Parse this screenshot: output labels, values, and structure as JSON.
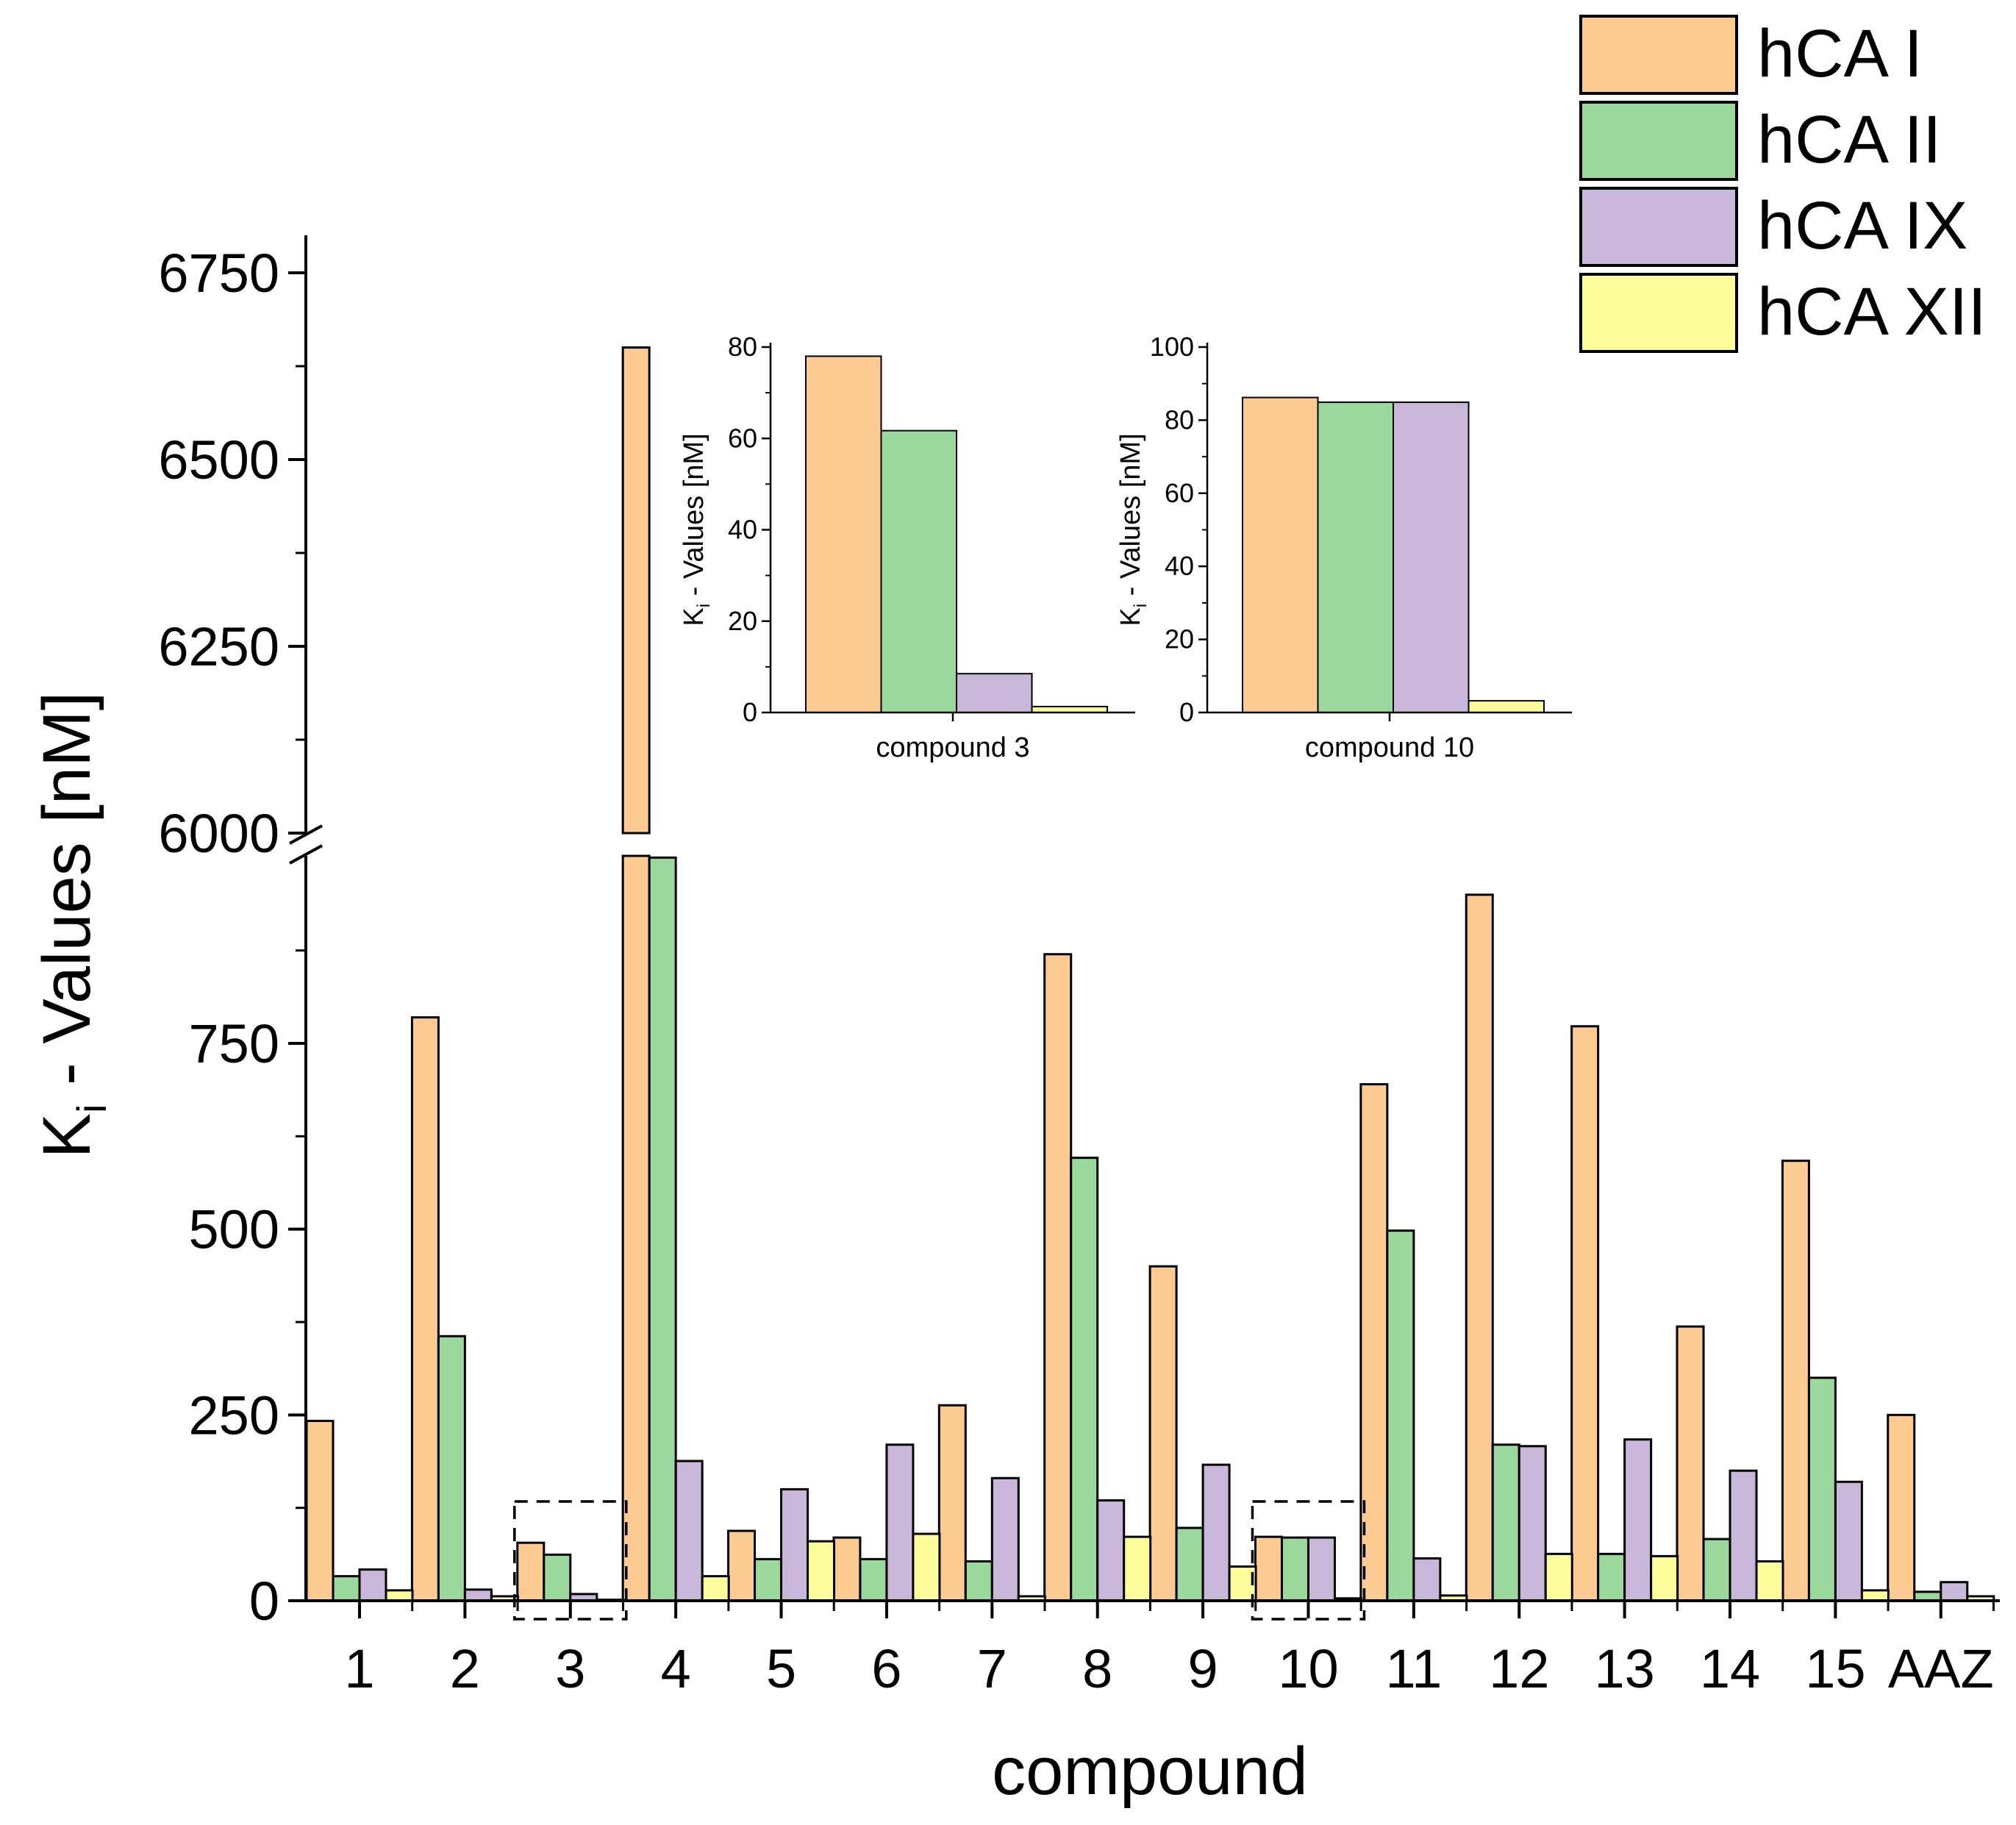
{
  "chart_data": [
    {
      "id": "main",
      "type": "bar",
      "title": "",
      "xlabel": "compound",
      "ylabel": "K_i - Values [nM]",
      "ylabel_main": "K",
      "ylabel_sub": "i",
      "ylabel_rest": " - Values [nM]",
      "categories": [
        "1",
        "2",
        "3",
        "4",
        "5",
        "6",
        "7",
        "8",
        "9",
        "10",
        "11",
        "12",
        "13",
        "14",
        "15",
        "AAZ"
      ],
      "y_axis_break": {
        "lower_range": [
          0,
          1000
        ],
        "upper_range": [
          6000,
          6800
        ],
        "lower_ticks": [
          0,
          250,
          500,
          750
        ],
        "lower_tick_labels": [
          "0",
          "250",
          "500",
          "750"
        ],
        "upper_ticks": [
          6000,
          6250,
          6500,
          6750
        ],
        "upper_tick_labels": [
          "6000",
          "6250",
          "6500",
          "6750"
        ]
      },
      "series": [
        {
          "name": "hCA I",
          "color": "#FDCA92",
          "values": [
            242,
            785,
            78,
            6650,
            94,
            85,
            263,
            870,
            450,
            86,
            695,
            950,
            773,
            369,
            592,
            250
          ]
        },
        {
          "name": "hCA II",
          "color": "#9BD89B",
          "values": [
            33,
            356,
            62,
            1000,
            56,
            56,
            53,
            596,
            98,
            85,
            498,
            210,
            63,
            83,
            300,
            12
          ]
        },
        {
          "name": "hCA IX",
          "color": "#C8B7D9",
          "values": [
            42,
            15,
            9,
            188,
            150,
            210,
            165,
            135,
            183,
            85,
            57,
            208,
            217,
            175,
            160,
            25
          ]
        },
        {
          "name": "hCA XII",
          "color": "#FDFD9C",
          "values": [
            14,
            6,
            1.3,
            33,
            80,
            90,
            6,
            86,
            46,
            3.2,
            7,
            63,
            60,
            53,
            14,
            6
          ]
        }
      ],
      "highlighted_categories": [
        "3",
        "10"
      ],
      "legend": {
        "position": "top-right",
        "entries": [
          "hCA I",
          "hCA II",
          "hCA IX",
          "hCA XII"
        ]
      }
    },
    {
      "id": "inset-3",
      "type": "bar",
      "title": "",
      "xlabel": "compound 3",
      "ylabel": "K_i - Values [nM]",
      "ylabel_main": "K",
      "ylabel_sub": "i",
      "ylabel_rest": " - Values [nM]",
      "categories": [
        "compound 3"
      ],
      "series": [
        {
          "name": "hCA I",
          "values": [
            78
          ]
        },
        {
          "name": "hCA II",
          "values": [
            61.7
          ]
        },
        {
          "name": "hCA IX",
          "values": [
            8.5
          ]
        },
        {
          "name": "hCA XII",
          "values": [
            1.3
          ]
        }
      ],
      "ylim": [
        0,
        80
      ],
      "yticks": [
        0,
        20,
        40,
        60,
        80
      ],
      "ytick_labels": [
        "0",
        "20",
        "40",
        "60",
        "80"
      ]
    },
    {
      "id": "inset-10",
      "type": "bar",
      "title": "",
      "xlabel": "compound 10",
      "ylabel": "K_i - Values [nM]",
      "ylabel_main": "K",
      "ylabel_sub": "i",
      "ylabel_rest": " - Values [nM]",
      "categories": [
        "compound 10"
      ],
      "series": [
        {
          "name": "hCA I",
          "values": [
            86.2
          ]
        },
        {
          "name": "hCA II",
          "values": [
            84.9
          ]
        },
        {
          "name": "hCA IX",
          "values": [
            84.9
          ]
        },
        {
          "name": "hCA XII",
          "values": [
            3.2
          ]
        }
      ],
      "ylim": [
        0,
        100
      ],
      "yticks": [
        0,
        20,
        40,
        60,
        80,
        100
      ],
      "ytick_labels": [
        "0",
        "20",
        "40",
        "60",
        "80",
        "100"
      ]
    }
  ]
}
